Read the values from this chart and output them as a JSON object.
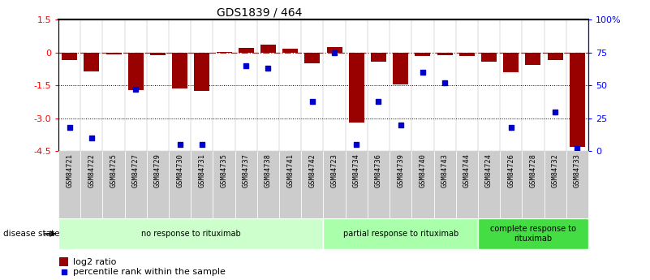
{
  "title": "GDS1839 / 464",
  "samples": [
    "GSM84721",
    "GSM84722",
    "GSM84725",
    "GSM84727",
    "GSM84729",
    "GSM84730",
    "GSM84731",
    "GSM84735",
    "GSM84737",
    "GSM84738",
    "GSM84741",
    "GSM84742",
    "GSM84723",
    "GSM84734",
    "GSM84736",
    "GSM84739",
    "GSM84740",
    "GSM84743",
    "GSM84744",
    "GSM84724",
    "GSM84726",
    "GSM84728",
    "GSM84732",
    "GSM84733"
  ],
  "log2_ratio": [
    -0.35,
    -0.85,
    -0.1,
    -1.7,
    -0.12,
    -1.65,
    -1.75,
    0.02,
    0.22,
    0.35,
    0.18,
    -0.5,
    0.25,
    -3.2,
    -0.42,
    -1.45,
    -0.15,
    -0.12,
    -0.15,
    -0.42,
    -0.9,
    -0.55,
    -0.35,
    -4.3
  ],
  "percentile": [
    18,
    10,
    null,
    47,
    null,
    5,
    5,
    null,
    65,
    63,
    null,
    38,
    75,
    5,
    38,
    20,
    60,
    52,
    null,
    null,
    18,
    null,
    30,
    2
  ],
  "groups": [
    {
      "label": "no response to rituximab",
      "start": 0,
      "end": 12,
      "color": "#ccffcc"
    },
    {
      "label": "partial response to rituximab",
      "start": 12,
      "end": 19,
      "color": "#aaffaa"
    },
    {
      "label": "complete response to\nrituximab",
      "start": 19,
      "end": 24,
      "color": "#44dd44"
    }
  ],
  "ylim_left": [
    -4.5,
    1.5
  ],
  "ylim_right": [
    0,
    100
  ],
  "yticks_left": [
    1.5,
    0,
    -1.5,
    -3.0,
    -4.5
  ],
  "yticks_right_vals": [
    100,
    75,
    50,
    25,
    0
  ],
  "yticks_right_labels": [
    "100%",
    "75",
    "50",
    "25",
    "0"
  ],
  "bar_color": "#990000",
  "point_color": "#0000cc",
  "background_color": "#ffffff",
  "cell_color": "#cccccc"
}
